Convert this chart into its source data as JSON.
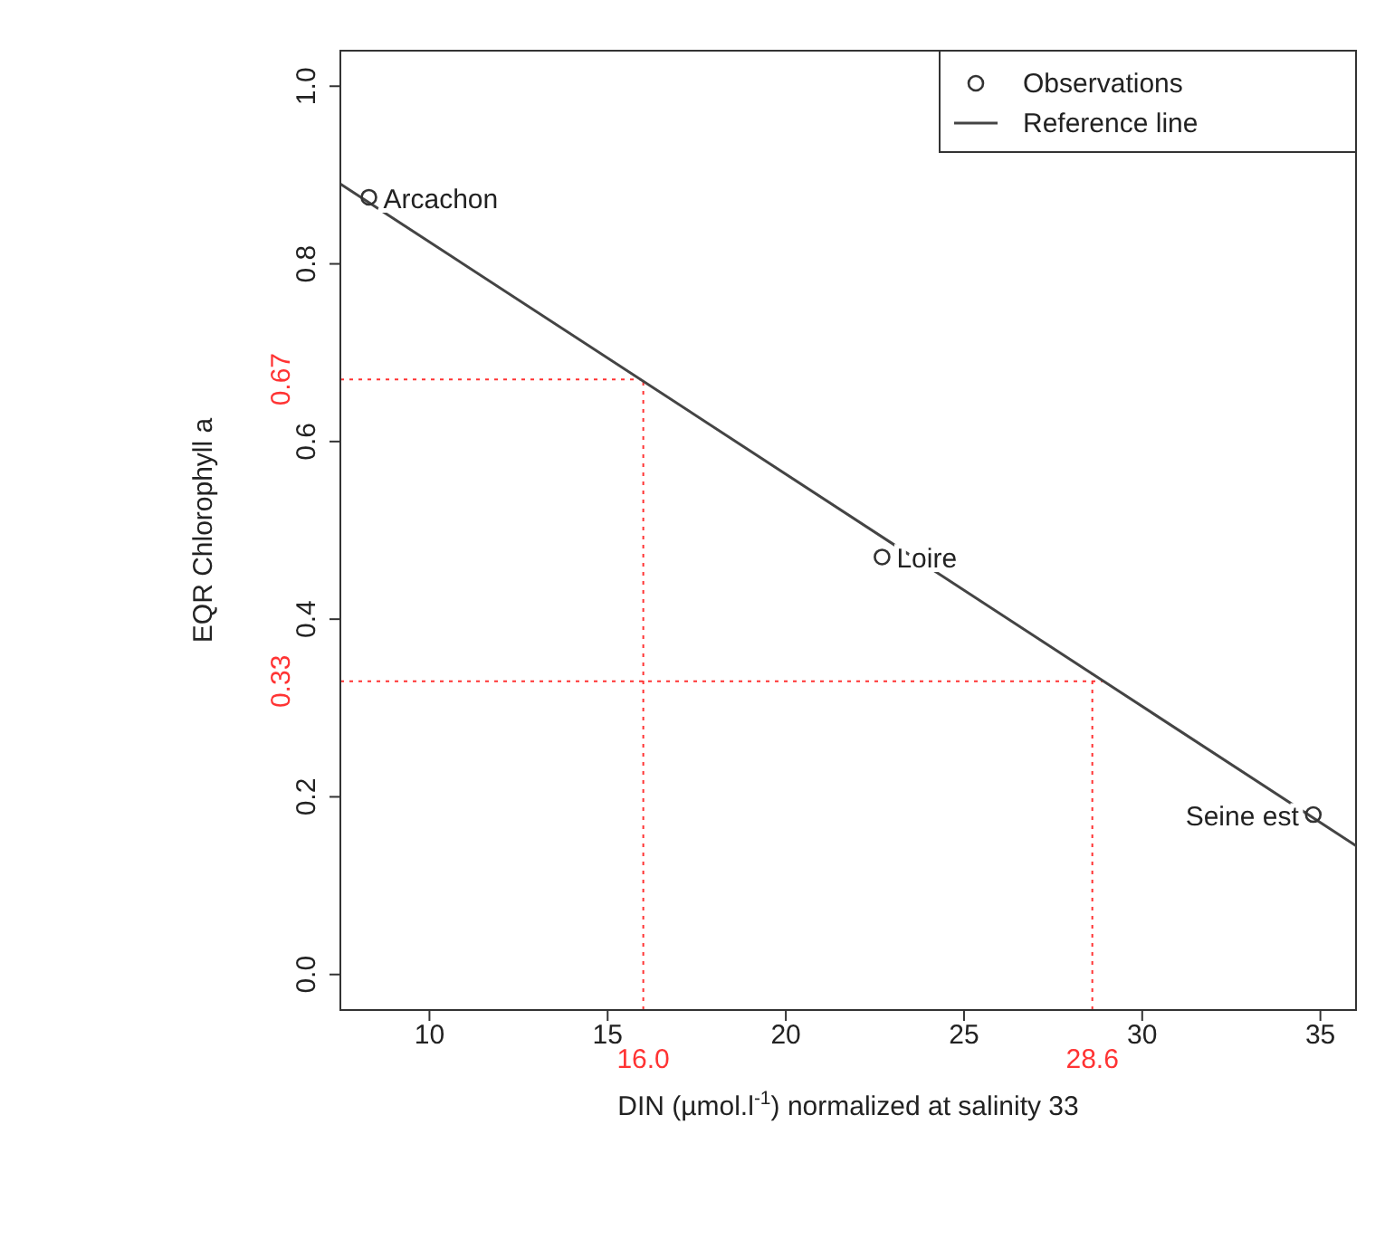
{
  "chart_data": {
    "type": "scatter",
    "xlabel": "DIN (µmol.l$^{-1}$) normalized at salinity 33",
    "ylabel": "EQR Chlorophyll  a",
    "xlim": [
      7.5,
      36
    ],
    "xticks": [
      10,
      15,
      20,
      25,
      30,
      35
    ],
    "ylim": [
      -0.04,
      1.04
    ],
    "yticks": [
      {
        "value": 0,
        "label": "0.0"
      },
      {
        "value": 0.2,
        "label": "0.2"
      },
      {
        "value": 0.4,
        "label": "0.4"
      },
      {
        "value": 0.6,
        "label": "0.6"
      },
      {
        "value": 0.8,
        "label": "0.8"
      },
      {
        "value": 1,
        "label": "1.0"
      }
    ],
    "series": [
      {
        "name": "Observations",
        "color": "#333333",
        "marker": "circle",
        "x": [
          8.3,
          22.7,
          34.8
        ],
        "values": [
          0.875,
          0.47,
          0.18
        ]
      },
      {
        "name": "Reference line",
        "type": "line",
        "color": "#444444",
        "marker": "none",
        "line_style": "solid",
        "x": [
          7.5,
          36
        ],
        "values": [
          0.89,
          0.145
        ]
      }
    ],
    "ref_lines": [
      {
        "axis": "y",
        "value": 0.67,
        "label": "0.67",
        "color": "#ff3333",
        "line_style": "dotted"
      },
      {
        "axis": "y",
        "value": 0.33,
        "label": "0.33",
        "color": "#ff3333",
        "line_style": "dotted"
      },
      {
        "axis": "x",
        "value": 16.0,
        "label": "16.0",
        "color": "#ff3333",
        "line_style": "dotted"
      },
      {
        "axis": "x",
        "value": 28.6,
        "label": "28.6",
        "color": "#ff3333",
        "line_style": "dotted"
      }
    ],
    "annotations": [
      {
        "text": "Arcachon",
        "x": 8.3,
        "y": 0.875
      },
      {
        "text": "Loire",
        "x": 22.7,
        "y": 0.47
      },
      {
        "text": "Seine est",
        "x": 34.8,
        "y": 0.18
      }
    ],
    "legend": "top right",
    "grid": false
  }
}
